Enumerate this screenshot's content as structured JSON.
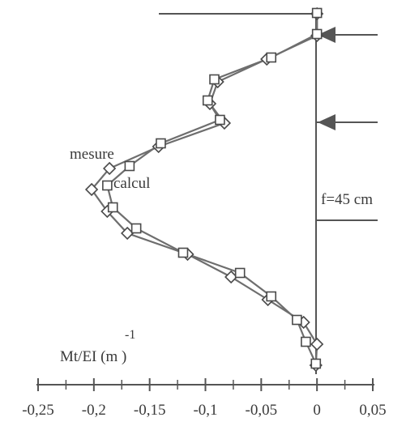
{
  "chart_data": {
    "type": "line",
    "xlabel": "Mt/EI (m )",
    "xlabel_exponent": "-1",
    "xlim": [
      -0.25,
      0.05
    ],
    "x_tick_labels": [
      "-0,25",
      "-0,2",
      "-0,15",
      "-0,1",
      "-0,05",
      "0",
      "0,05"
    ],
    "x_tick_values": [
      -0.25,
      -0.2,
      -0.15,
      -0.1,
      -0.05,
      0,
      0.05
    ],
    "annotation": "f=45 cm",
    "series": [
      {
        "name": "mesure",
        "marker": "diamond",
        "values": [
          {
            "x": 0.0,
            "y": 17
          },
          {
            "x": 0.0,
            "y": 44
          },
          {
            "x": -0.045,
            "y": 73
          },
          {
            "x": -0.089,
            "y": 101
          },
          {
            "x": -0.096,
            "y": 128
          },
          {
            "x": -0.083,
            "y": 152
          },
          {
            "x": -0.142,
            "y": 181
          },
          {
            "x": -0.186,
            "y": 208
          },
          {
            "x": -0.202,
            "y": 234
          },
          {
            "x": -0.188,
            "y": 261
          },
          {
            "x": -0.17,
            "y": 288
          },
          {
            "x": -0.116,
            "y": 314
          },
          {
            "x": -0.077,
            "y": 342
          },
          {
            "x": -0.044,
            "y": 370
          },
          {
            "x": -0.012,
            "y": 398
          },
          {
            "x": 0.0,
            "y": 425
          },
          {
            "x": -0.001,
            "y": 451
          }
        ]
      },
      {
        "name": "calcul",
        "marker": "square",
        "values": [
          {
            "x": 0.0,
            "y": 16
          },
          {
            "x": 0.0,
            "y": 42
          },
          {
            "x": -0.041,
            "y": 71
          },
          {
            "x": -0.092,
            "y": 98
          },
          {
            "x": -0.098,
            "y": 124
          },
          {
            "x": -0.087,
            "y": 148
          },
          {
            "x": -0.14,
            "y": 177
          },
          {
            "x": -0.168,
            "y": 205
          },
          {
            "x": -0.188,
            "y": 229
          },
          {
            "x": -0.183,
            "y": 256
          },
          {
            "x": -0.162,
            "y": 282
          },
          {
            "x": -0.12,
            "y": 312
          },
          {
            "x": -0.069,
            "y": 337
          },
          {
            "x": -0.041,
            "y": 366
          },
          {
            "x": -0.018,
            "y": 395
          },
          {
            "x": -0.01,
            "y": 422
          },
          {
            "x": -0.001,
            "y": 449
          }
        ]
      }
    ],
    "colors": {
      "line": "#6e6e6e",
      "marker_stroke": "#4a4a4a",
      "arrow": "#555555",
      "axis": "#555555",
      "text": "#3a3a3a"
    }
  }
}
